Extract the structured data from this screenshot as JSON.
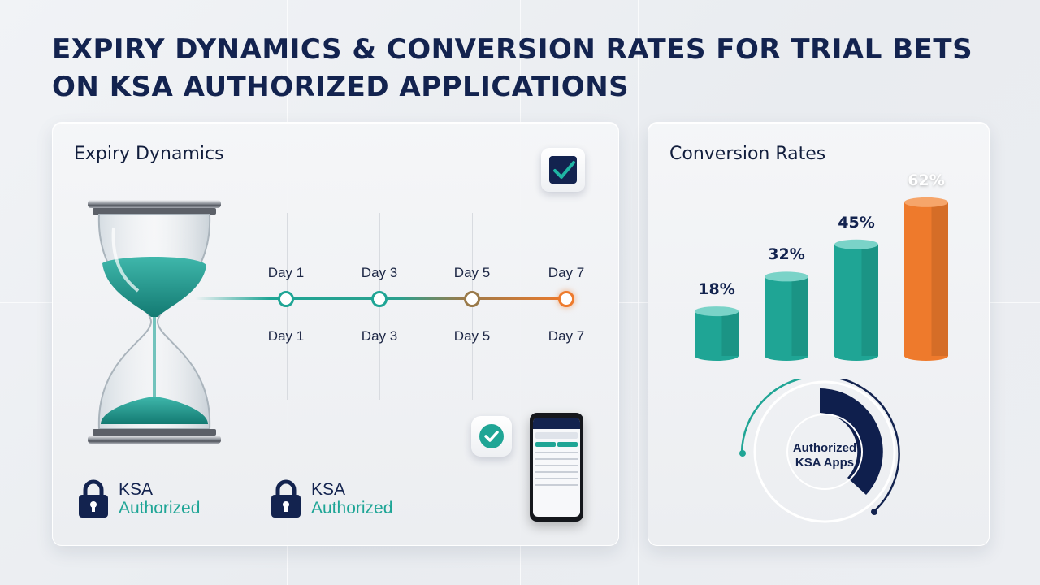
{
  "header": {
    "title_line1": "EXPIRY DYNAMICS & CONVERSION RATES FOR TRIAL BETS",
    "title_line2": "ON KSA AUTHORIZED APPLICATIONS"
  },
  "expiry": {
    "title": "Expiry Dynamics",
    "timeline_top_labels": [
      "Day 1",
      "Day 3",
      "Day 5",
      "Day 7"
    ],
    "timeline_bottom_labels": [
      "Day 1",
      "Day 3",
      "Day 5",
      "Day 7"
    ],
    "authorized_badges": [
      {
        "line1": "KSA",
        "line2": "Authorized"
      },
      {
        "line1": "KSA",
        "line2": "Authorized"
      }
    ],
    "icons": [
      "hourglass-icon",
      "checkbox-icon",
      "check-badge-icon",
      "lock-icon",
      "smartphone-icon"
    ]
  },
  "conversion": {
    "title": "Conversion Rates",
    "donut_label_line1": "Authorized",
    "donut_label_line2": "KSA Apps"
  },
  "colors": {
    "teal": "#1fa595",
    "teal_light": "#5ac8ba",
    "orange": "#ee7a2c",
    "navy": "#0f1f4d",
    "brown": "#9a7a4a"
  },
  "chart_data": {
    "type": "bar",
    "title": "Conversion Rates",
    "categories": [
      "",
      "",
      "",
      ""
    ],
    "values": [
      18,
      32,
      45,
      62
    ],
    "data_labels": [
      "18%",
      "32%",
      "45%",
      "62%"
    ],
    "unit": "%",
    "colors": [
      "#1fa595",
      "#1fa595",
      "#1fa595",
      "#ee7a2c"
    ],
    "grid": false,
    "xlabel": "",
    "ylabel": ""
  }
}
